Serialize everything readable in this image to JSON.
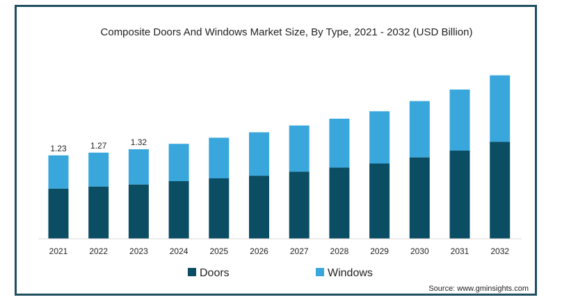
{
  "chart_data": {
    "type": "bar",
    "stacked": true,
    "title": "Composite Doors And Windows Market Size, By Type, 2021 - 2032 (USD Billion)",
    "xlabel": "",
    "ylabel": "",
    "ylim": [
      0,
      2.65
    ],
    "grid": false,
    "legend_position": "bottom",
    "categories": [
      "2021",
      "2022",
      "2023",
      "2024",
      "2025",
      "2026",
      "2027",
      "2028",
      "2029",
      "2030",
      "2031",
      "2032"
    ],
    "series": [
      {
        "name": "Doors",
        "color": "#0b4d63",
        "values": [
          0.74,
          0.77,
          0.8,
          0.85,
          0.89,
          0.93,
          0.99,
          1.05,
          1.11,
          1.2,
          1.3,
          1.43
        ]
      },
      {
        "name": "Windows",
        "color": "#3aa7dc",
        "values": [
          0.49,
          0.5,
          0.52,
          0.55,
          0.6,
          0.64,
          0.68,
          0.72,
          0.77,
          0.83,
          0.9,
          0.98
        ]
      }
    ],
    "data_labels": [
      "1.23",
      "1.27",
      "1.32",
      "",
      "",
      "",
      "",
      "",
      "",
      "",
      "",
      ""
    ]
  },
  "source": "Source: www.gminsights.com"
}
